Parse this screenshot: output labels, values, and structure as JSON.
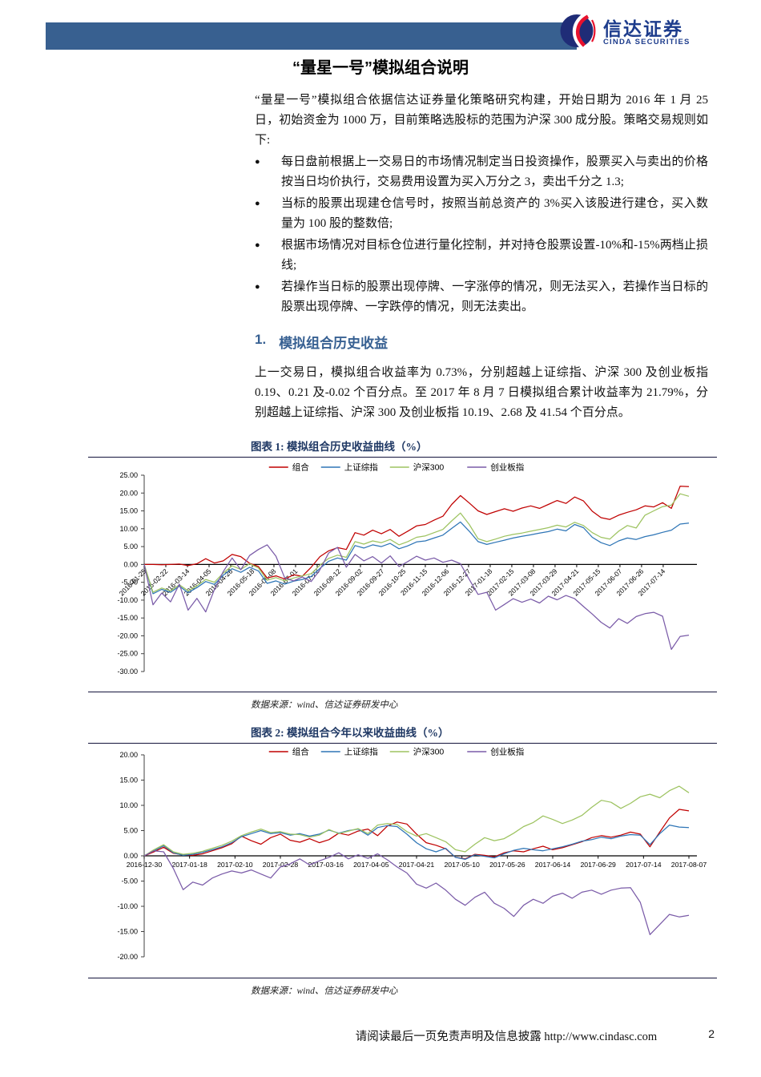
{
  "header": {
    "bar_color": "#386090",
    "brand_cn": "信达证券",
    "brand_en": "CINDA SECURITIES"
  },
  "title": "“量星一号”模拟组合说明",
  "intro": "“量星一号”模拟组合依据信达证券量化策略研究构建，开始日期为 2016 年 1 月 25 日，初始资金为 1000 万，目前策略选股标的范围为沪深 300 成分股。策略交易规则如下:",
  "bullets": [
    "每日盘前根据上一交易日的市场情况制定当日投资操作，股票买入与卖出的价格按当日均价执行，交易费用设置为买入万分之 3，卖出千分之 1.3;",
    "当标的股票出现建仓信号时，按照当前总资产的 3%买入该股进行建仓，买入数量为 100 股的整数倍;",
    "根据市场情况对目标仓位进行量化控制，并对持仓股票设置-10%和-15%两档止损线;",
    "若操作当日标的股票出现停牌、一字涨停的情况，则无法买入，若操作当日标的股票出现停牌、一字跌停的情况，则无法卖出。"
  ],
  "section": {
    "number": "1.",
    "heading": "模拟组合历史收益",
    "body": "上一交易日，模拟组合收益率为 0.73%，分别超越上证综指、沪深 300 及创业板指 0.19、0.21 及-0.02 个百分点。至 2017 年 8 月 7 日模拟组合累计收益率为 21.79%，分别超越上证综指、沪深 300 及创业板指 10.19、2.68 及 41.54 个百分点。"
  },
  "figures": [
    {
      "caption": "图表 1: 模拟组合历史收益曲线（%）",
      "source": "数据来源：wind、信达证券研发中心"
    },
    {
      "caption": "图表 2: 模拟组合今年以来收益曲线（%）",
      "source": "数据来源：wind、信达证券研发中心"
    }
  ],
  "footer": {
    "disclaimer": "请阅读最后一页免责声明及信息披露",
    "url": "http://www.cindasc.com",
    "page": "2"
  },
  "chart_data": [
    {
      "type": "line",
      "title": "模拟组合历史收益曲线（%）",
      "legend_position": "top",
      "grid": false,
      "ylim": [
        -30,
        25
      ],
      "yticks": [
        25,
        20,
        15,
        10,
        5,
        0,
        -5,
        -10,
        -15,
        -20,
        -25,
        -30
      ],
      "x_tick_rotate": true,
      "tick_step_frac": 0.0397,
      "x_tick_labels": [
        "2016-01-25",
        "2016-02-22",
        "2016-03-14",
        "2016-04-05",
        "2016-04-26",
        "2016-05-18",
        "2016-06-08",
        "2016-07-01",
        "2016-07-22",
        "2016-08-12",
        "2016-09-02",
        "2016-09-27",
        "2016-10-25",
        "2016-11-15",
        "2016-12-06",
        "2016-12-27",
        "2017-01-18",
        "2017-02-15",
        "2017-03-08",
        "2017-03-29",
        "2017-04-21",
        "2017-05-15",
        "2017-06-07",
        "2017-06-26",
        "2017-07-14"
      ],
      "series": [
        {
          "name": "组合",
          "color": "#C00000",
          "values": [
            0,
            0,
            -0.1,
            0,
            0.1,
            -0.3,
            0.2,
            1.6,
            0.4,
            1.0,
            2.8,
            2.2,
            0.3,
            -0.6,
            -3.8,
            -3.2,
            -4.1,
            -2.9,
            -3.3,
            -0.8,
            2.2,
            3.8,
            4.7,
            4.2,
            8.9,
            8.2,
            9.6,
            8.6,
            9.8,
            7.9,
            9.3,
            10.8,
            11.2,
            12.4,
            13.5,
            16.8,
            19.3,
            17.2,
            15.0,
            14.0,
            14.8,
            15.6,
            14.9,
            15.8,
            16.4,
            15.7,
            16.8,
            17.9,
            17.1,
            18.9,
            17.8,
            14.9,
            13.1,
            12.6,
            13.8,
            14.6,
            15.3,
            16.4,
            16.1,
            17.3,
            15.7,
            21.9,
            21.8
          ]
        },
        {
          "name": "上证综指",
          "color": "#2E75B6",
          "values": [
            0,
            -8.2,
            -7.0,
            -7.8,
            -6.1,
            -7.9,
            -6.5,
            -4.8,
            -5.6,
            -3.0,
            -1.2,
            -2.2,
            -0.8,
            -1.8,
            -5.3,
            -4.6,
            -5.5,
            -4.7,
            -4.2,
            -3.4,
            -1.1,
            0.9,
            1.8,
            1.2,
            5.3,
            4.6,
            5.5,
            5.0,
            5.9,
            4.4,
            5.2,
            6.3,
            6.6,
            7.4,
            8.2,
            10.1,
            11.9,
            9.3,
            6.4,
            5.6,
            6.2,
            6.8,
            7.4,
            7.9,
            8.3,
            8.8,
            9.2,
            9.9,
            9.4,
            11.2,
            10.3,
            7.6,
            6.1,
            5.3,
            6.6,
            7.4,
            7.0,
            7.8,
            8.3,
            9.0,
            9.6,
            11.3,
            11.6
          ]
        },
        {
          "name": "沪深300",
          "color": "#9DC360",
          "values": [
            0,
            -7.8,
            -6.6,
            -7.4,
            -5.7,
            -7.4,
            -6.0,
            -4.2,
            -5.0,
            -2.4,
            -0.4,
            -1.4,
            0.2,
            -1.0,
            -4.4,
            -3.7,
            -4.6,
            -3.8,
            -3.2,
            -2.6,
            -0.2,
            1.7,
            2.6,
            2.0,
            6.4,
            5.7,
            6.6,
            6.1,
            7.0,
            5.5,
            6.4,
            7.6,
            8.0,
            8.9,
            9.8,
            12.2,
            14.4,
            11.2,
            7.2,
            6.4,
            7.1,
            7.9,
            8.4,
            8.8,
            9.3,
            9.8,
            10.3,
            11.0,
            10.5,
            11.8,
            10.9,
            8.9,
            7.6,
            7.1,
            9.3,
            10.9,
            10.2,
            13.8,
            15.0,
            16.2,
            16.6,
            19.8,
            19.1
          ]
        },
        {
          "name": "创业板指",
          "color": "#7A5BA8",
          "values": [
            0,
            -11.3,
            -8.0,
            -10.5,
            -5.5,
            -12.8,
            -9.5,
            -13.3,
            -7.0,
            -2.0,
            1.8,
            -1.5,
            2.5,
            4.2,
            5.5,
            2.3,
            -3.8,
            -4.6,
            -3.5,
            -4.8,
            -1.5,
            3.2,
            4.8,
            -0.8,
            2.8,
            1.0,
            2.2,
            0.4,
            2.4,
            -0.6,
            0.8,
            2.3,
            1.2,
            1.8,
            0.6,
            1.2,
            0.2,
            -4.2,
            -8.4,
            -7.8,
            -12.8,
            -11.2,
            -9.6,
            -10.6,
            -9.7,
            -10.8,
            -8.9,
            -9.9,
            -8.7,
            -9.6,
            -11.8,
            -13.9,
            -16.2,
            -17.8,
            -15.2,
            -16.5,
            -14.6,
            -13.8,
            -13.4,
            -14.5,
            -23.8,
            -20.2,
            -19.8
          ]
        }
      ]
    },
    {
      "type": "line",
      "title": "模拟组合今年以来收益曲线（%）",
      "legend_position": "top",
      "grid": false,
      "ylim": [
        -20,
        20
      ],
      "yticks": [
        20,
        15,
        10,
        5,
        0,
        -5,
        -10,
        -15,
        -20
      ],
      "x_tick_rotate": false,
      "x_tick_labels": [
        "2016-12-30",
        "2017-01-18",
        "2017-02-10",
        "2017-02-28",
        "2017-03-16",
        "2017-04-05",
        "2017-04-21",
        "2017-05-10",
        "2017-05-26",
        "2017-06-14",
        "2017-06-29",
        "2017-07-14",
        "2017-08-07"
      ],
      "series": [
        {
          "name": "组合",
          "color": "#C00000",
          "values": [
            0,
            0.8,
            1.7,
            0.5,
            0.2,
            0.1,
            0.4,
            1.0,
            1.6,
            2.4,
            3.9,
            3.0,
            2.3,
            3.6,
            4.3,
            3.1,
            2.7,
            3.4,
            2.6,
            3.2,
            4.5,
            4.1,
            4.9,
            5.3,
            4.0,
            5.9,
            6.7,
            6.3,
            4.3,
            2.6,
            2.1,
            1.4,
            -0.3,
            -0.6,
            0.3,
            0.1,
            -0.2,
            0.6,
            1.0,
            0.8,
            1.4,
            1.9,
            1.2,
            1.6,
            2.2,
            2.8,
            3.6,
            4.0,
            3.7,
            4.1,
            4.7,
            4.3,
            1.8,
            4.7,
            7.5,
            9.2,
            8.9
          ]
        },
        {
          "name": "上证综指",
          "color": "#2E75B6",
          "values": [
            0,
            1.0,
            2.0,
            0.6,
            0.1,
            0.3,
            0.7,
            1.2,
            1.8,
            2.6,
            3.8,
            4.4,
            5.0,
            4.4,
            4.6,
            4.1,
            4.4,
            3.9,
            4.3,
            5.1,
            4.5,
            5.0,
            5.3,
            4.1,
            5.6,
            6.0,
            5.8,
            4.3,
            2.6,
            1.4,
            0.8,
            1.5,
            -0.3,
            -0.7,
            0.2,
            -0.1,
            -0.4,
            0.4,
            1.1,
            1.5,
            1.2,
            1.0,
            1.4,
            1.8,
            2.3,
            2.9,
            3.2,
            3.7,
            3.4,
            3.9,
            4.2,
            4.1,
            2.2,
            4.4,
            6.1,
            5.7,
            5.6
          ]
        },
        {
          "name": "沪深300",
          "color": "#9DC360",
          "values": [
            0,
            1.2,
            2.2,
            0.8,
            0.3,
            0.5,
            0.9,
            1.5,
            2.1,
            2.9,
            4.0,
            4.7,
            5.3,
            4.6,
            4.8,
            4.3,
            4.2,
            3.7,
            4.1,
            5.2,
            4.4,
            4.9,
            5.4,
            4.4,
            6.1,
            6.4,
            6.2,
            4.8,
            3.9,
            4.4,
            3.6,
            2.8,
            1.2,
            0.8,
            2.3,
            3.6,
            3.0,
            3.4,
            4.5,
            5.8,
            6.6,
            7.9,
            7.2,
            6.4,
            7.1,
            8.0,
            9.6,
            11.0,
            10.6,
            9.4,
            10.4,
            11.7,
            12.2,
            11.5,
            12.9,
            13.8,
            12.5
          ]
        },
        {
          "name": "创业板指",
          "color": "#7A5BA8",
          "values": [
            0,
            1.0,
            0.8,
            -2.5,
            -6.7,
            -5.2,
            -5.8,
            -4.4,
            -3.6,
            -3.0,
            -3.4,
            -2.8,
            -3.6,
            -4.4,
            -2.2,
            -1.6,
            -0.6,
            -1.8,
            -1.0,
            -0.3,
            0.6,
            -0.6,
            0.2,
            -0.5,
            0.4,
            -0.8,
            -2.2,
            -3.4,
            -5.6,
            -6.4,
            -5.4,
            -6.8,
            -8.6,
            -9.8,
            -8.2,
            -7.2,
            -9.4,
            -10.4,
            -12.0,
            -9.8,
            -8.6,
            -9.4,
            -8.0,
            -7.4,
            -8.4,
            -7.2,
            -6.8,
            -7.6,
            -6.8,
            -6.4,
            -6.3,
            -9.2,
            -15.6,
            -13.6,
            -11.6,
            -12.1,
            -11.8
          ]
        }
      ]
    }
  ]
}
